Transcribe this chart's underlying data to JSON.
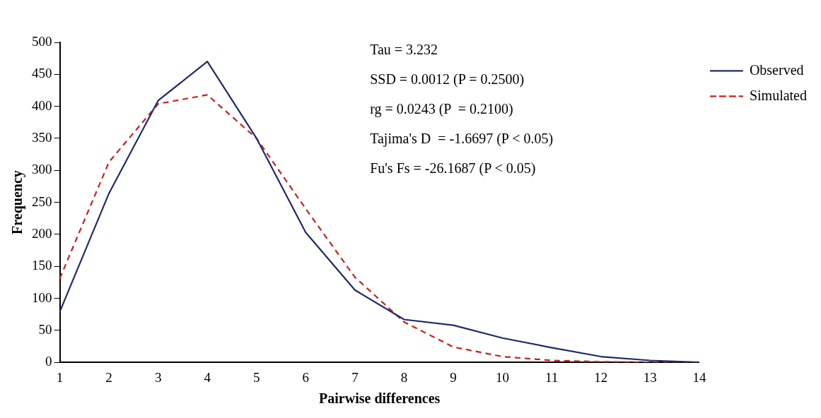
{
  "chart_data": {
    "type": "line",
    "xlabel": "Pairwise differences",
    "ylabel": "Frequency",
    "x": [
      1,
      2,
      3,
      4,
      5,
      6,
      7,
      8,
      9,
      10,
      11,
      12,
      13,
      14
    ],
    "xlim": [
      1,
      14
    ],
    "xticks": [
      1,
      2,
      3,
      4,
      5,
      6,
      7,
      8,
      9,
      10,
      11,
      12,
      13,
      14
    ],
    "series": [
      {
        "name": "Observed",
        "color": "#1f2a6b",
        "line_style": "solid",
        "values": [
          79,
          264,
          409,
          470,
          350,
          203,
          113,
          67,
          58,
          38,
          23,
          9,
          3,
          0
        ]
      },
      {
        "name": "Simulated",
        "color": "#d01c1c",
        "line_style": "dashed",
        "values": [
          131,
          313,
          404,
          418,
          350,
          240,
          133,
          63,
          24,
          9,
          3,
          1,
          0,
          0
        ]
      }
    ],
    "ylim": [
      0,
      500
    ],
    "yticks": [
      0,
      50,
      100,
      150,
      200,
      250,
      300,
      350,
      400,
      450,
      500
    ],
    "grid": false,
    "legend": "top right",
    "marker": "none",
    "annotations": [
      "Tau = 3.232",
      "SSD = 0.0012 (P = 0.2500)",
      "rg = 0.0243 (P  = 0.2100)",
      "Tajima's D  = -1.6697 (P < 0.05)",
      "Fu's Fs = -26.1687 (P < 0.05)"
    ]
  }
}
